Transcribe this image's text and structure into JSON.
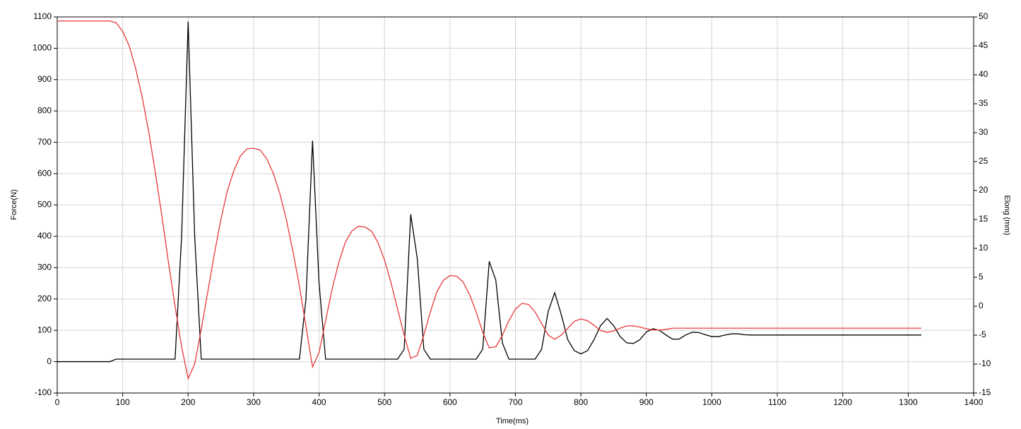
{
  "chart_data": {
    "type": "line",
    "xlabel": "Time(ms)",
    "ylabel": "Force(N)",
    "y2label": "Elong (mm)",
    "x": [
      0,
      10,
      20,
      30,
      40,
      50,
      60,
      70,
      80,
      90,
      100,
      110,
      120,
      130,
      140,
      150,
      160,
      170,
      180,
      190,
      200,
      210,
      220,
      230,
      240,
      250,
      260,
      270,
      280,
      290,
      300,
      310,
      320,
      330,
      340,
      350,
      360,
      370,
      380,
      390,
      400,
      410,
      420,
      430,
      440,
      450,
      460,
      470,
      480,
      490,
      500,
      510,
      520,
      530,
      540,
      550,
      560,
      570,
      580,
      590,
      600,
      610,
      620,
      630,
      640,
      650,
      660,
      670,
      680,
      690,
      700,
      710,
      720,
      730,
      740,
      750,
      760,
      770,
      780,
      790,
      800,
      810,
      820,
      830,
      840,
      850,
      860,
      870,
      880,
      890,
      900,
      910,
      920,
      930,
      940,
      950,
      960,
      970,
      980,
      990,
      1000,
      1010,
      1020,
      1030,
      1040,
      1050,
      1060,
      1070,
      1080,
      1090,
      1100,
      1110,
      1120,
      1130,
      1140,
      1150,
      1160,
      1170,
      1180,
      1190,
      1200,
      1210,
      1220,
      1230,
      1240,
      1250,
      1260,
      1270,
      1280,
      1290,
      1300,
      1310,
      1320
    ],
    "series": [
      {
        "color": "#000000",
        "axis": "y",
        "values": [
          0,
          0,
          0,
          0,
          0,
          0,
          0,
          0,
          0,
          8,
          8,
          8,
          8,
          8,
          8,
          8,
          8,
          8,
          8,
          400,
          1085,
          400,
          8,
          8,
          8,
          8,
          8,
          8,
          8,
          8,
          8,
          8,
          8,
          8,
          8,
          8,
          8,
          8,
          200,
          705,
          250,
          8,
          8,
          8,
          8,
          8,
          8,
          8,
          8,
          8,
          8,
          8,
          8,
          40,
          470,
          330,
          40,
          8,
          8,
          8,
          8,
          8,
          8,
          8,
          8,
          40,
          320,
          260,
          60,
          8,
          8,
          8,
          8,
          8,
          40,
          160,
          220,
          150,
          70,
          35,
          25,
          35,
          70,
          115,
          138,
          115,
          80,
          60,
          58,
          70,
          95,
          105,
          100,
          85,
          72,
          72,
          85,
          94,
          93,
          86,
          80,
          80,
          85,
          89,
          89,
          86,
          85,
          85,
          85,
          85,
          85,
          85,
          85,
          85,
          85,
          85,
          85,
          85,
          85,
          85,
          85,
          85,
          85,
          85,
          85,
          85,
          85,
          85,
          85,
          85,
          85,
          85,
          85
        ]
      },
      {
        "color": "#e8373a",
        "axis": "y2",
        "values": [
          49.3,
          49.3,
          49.3,
          49.3,
          49.3,
          49.3,
          49.3,
          49.3,
          49.3,
          49,
          47.5,
          45,
          41,
          36,
          30,
          23,
          15.5,
          7.5,
          0,
          -7,
          -12.5,
          -10,
          -4,
          2.5,
          9,
          15,
          20,
          23.5,
          26,
          27.2,
          27.3,
          27,
          25.5,
          23,
          19.5,
          15,
          9.5,
          3.5,
          -3.5,
          -10.5,
          -8,
          -2.5,
          3,
          7.5,
          11,
          13,
          13.8,
          13.7,
          13,
          11,
          8,
          4,
          -0.5,
          -5,
          -9,
          -8.5,
          -5,
          -1,
          2.5,
          4.5,
          5.3,
          5.2,
          4.2,
          2,
          -1,
          -4.5,
          -7.2,
          -7,
          -5,
          -2.5,
          -0.5,
          0.5,
          0.3,
          -1,
          -3,
          -5,
          -5.7,
          -5,
          -3.8,
          -2.6,
          -2.2,
          -2.5,
          -3.3,
          -4.2,
          -4.5,
          -4.3,
          -3.8,
          -3.4,
          -3.4,
          -3.6,
          -3.9,
          -4.1,
          -4.1,
          -4,
          -3.8,
          -3.8,
          -3.8,
          -3.8,
          -3.8,
          -3.8,
          -3.8,
          -3.8,
          -3.8,
          -3.8,
          -3.8,
          -3.8,
          -3.8,
          -3.8,
          -3.8,
          -3.8,
          -3.8,
          -3.8,
          -3.8,
          -3.8,
          -3.8,
          -3.8,
          -3.8,
          -3.8,
          -3.8,
          -3.8,
          -3.8,
          -3.8,
          -3.8,
          -3.8,
          -3.8,
          -3.8,
          -3.8,
          -3.8,
          -3.8,
          -3.8,
          -3.8,
          -3.8,
          -3.8
        ]
      }
    ],
    "xlim": [
      0,
      1400
    ],
    "xticks": [
      0,
      100,
      200,
      300,
      400,
      500,
      600,
      700,
      800,
      900,
      1000,
      1100,
      1200,
      1300,
      1400
    ],
    "ylim": [
      -100,
      1100
    ],
    "yticks": [
      -100,
      0,
      100,
      200,
      300,
      400,
      500,
      600,
      700,
      800,
      900,
      1000,
      1100
    ],
    "y2lim": [
      -15,
      50
    ],
    "y2ticks": [
      -15,
      -10,
      -5,
      0,
      5,
      10,
      15,
      20,
      25,
      30,
      35,
      40,
      45,
      50
    ],
    "grid": true
  }
}
